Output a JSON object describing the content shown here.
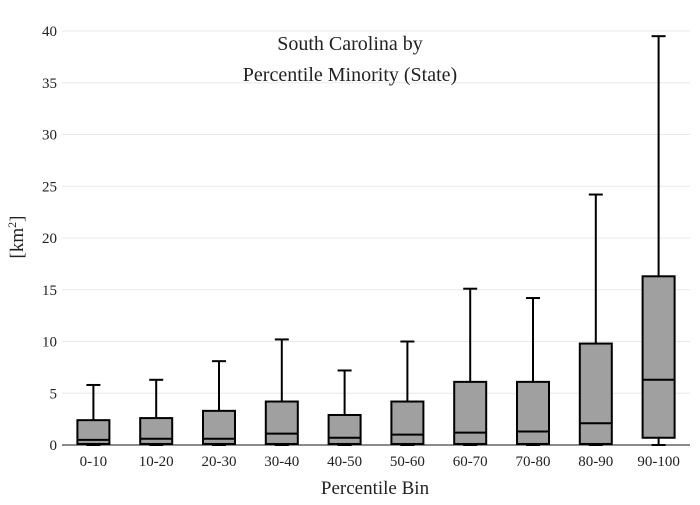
{
  "chart_data": {
    "type": "box",
    "title_lines": [
      "South Carolina  by",
      "Percentile Minority (State)"
    ],
    "xlabel": "Percentile Bin",
    "ylabel_main": "[km",
    "ylabel_sup": "2",
    "ylabel_close": "]",
    "ylim": [
      0,
      40
    ],
    "y_ticks": [
      0,
      5,
      10,
      15,
      20,
      25,
      30,
      35,
      40
    ],
    "grid": "horizontal",
    "box_color": "#a0a0a0",
    "line_color": "#000000",
    "categories": [
      "0-10",
      "10-20",
      "20-30",
      "30-40",
      "40-50",
      "50-60",
      "60-70",
      "70-80",
      "80-90",
      "90-100"
    ],
    "boxes": [
      {
        "min": 0,
        "q1": 0.1,
        "median": 0.5,
        "q3": 2.4,
        "max": 5.8
      },
      {
        "min": 0,
        "q1": 0.1,
        "median": 0.6,
        "q3": 2.6,
        "max": 6.3
      },
      {
        "min": 0,
        "q1": 0.1,
        "median": 0.6,
        "q3": 3.3,
        "max": 8.1
      },
      {
        "min": 0,
        "q1": 0.1,
        "median": 1.1,
        "q3": 4.2,
        "max": 10.2
      },
      {
        "min": 0,
        "q1": 0.1,
        "median": 0.7,
        "q3": 2.9,
        "max": 7.2
      },
      {
        "min": 0,
        "q1": 0.1,
        "median": 1.0,
        "q3": 4.2,
        "max": 10.0
      },
      {
        "min": 0,
        "q1": 0.1,
        "median": 1.2,
        "q3": 6.1,
        "max": 15.1
      },
      {
        "min": 0,
        "q1": 0.1,
        "median": 1.3,
        "q3": 6.1,
        "max": 14.2
      },
      {
        "min": 0,
        "q1": 0.1,
        "median": 2.1,
        "q3": 9.8,
        "max": 24.2
      },
      {
        "min": 0,
        "q1": 0.7,
        "median": 6.3,
        "q3": 16.3,
        "max": 39.5
      }
    ]
  }
}
